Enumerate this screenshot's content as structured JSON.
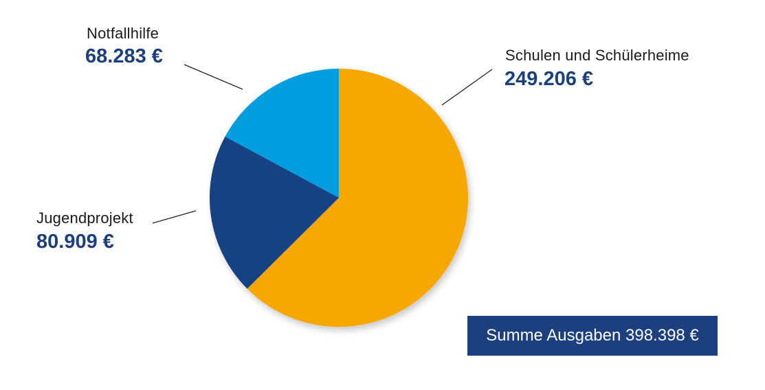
{
  "chart_data": {
    "type": "pie",
    "slices": [
      {
        "label": "Schulen und Schülerheime",
        "value": 249206,
        "value_text": "249.206 €",
        "color": "#f6a800"
      },
      {
        "label": "Jugendprojekt",
        "value": 80909,
        "value_text": "80.909 €",
        "color": "#154283"
      },
      {
        "label": "Notfallhilfe",
        "value": 68283,
        "value_text": "68.283 €",
        "color": "#009ddf"
      }
    ],
    "start_angle_deg": 0,
    "direction": "clockwise",
    "total_text": "Summe Ausgaben 398.398 €"
  }
}
